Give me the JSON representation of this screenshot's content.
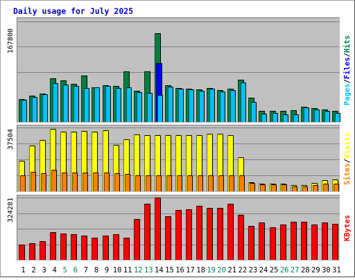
{
  "chart_data": [
    {
      "type": "bar",
      "title": "Daily usage for July 2025",
      "categories": [
        "1",
        "2",
        "3",
        "4",
        "5",
        "6",
        "7",
        "8",
        "9",
        "10",
        "11",
        "12",
        "13",
        "14",
        "15",
        "16",
        "17",
        "18",
        "19",
        "20",
        "21",
        "22",
        "23",
        "24",
        "25",
        "26",
        "27",
        "28",
        "29",
        "30",
        "31"
      ],
      "weekend_categories": [
        "5",
        "6",
        "12",
        "13",
        "19",
        "20",
        "26",
        "27"
      ],
      "ymax_label": "167800",
      "ylim": [
        0,
        167800
      ],
      "ylabel_parts": [
        "Pages",
        "Files",
        "Hits"
      ],
      "series": [
        {
          "name": "Hits",
          "color": "#008040",
          "values": [
            38000,
            44000,
            47000,
            73000,
            69000,
            64000,
            78000,
            58000,
            61000,
            60000,
            85000,
            52000,
            84000,
            148000,
            61000,
            57000,
            56000,
            54000,
            57000,
            53000,
            55000,
            71000,
            40000,
            18000,
            19000,
            19000,
            20000,
            25000,
            23000,
            21000,
            19000
          ]
        },
        {
          "name": "Files",
          "color": "#0000ff",
          "values": [
            null,
            null,
            null,
            null,
            null,
            null,
            null,
            null,
            null,
            null,
            null,
            null,
            null,
            98000,
            null,
            null,
            null,
            null,
            null,
            null,
            null,
            null,
            null,
            null,
            null,
            null,
            null,
            null,
            null,
            null,
            null
          ]
        },
        {
          "name": "Pages",
          "color": "#00c0ff",
          "values": [
            37000,
            42000,
            46000,
            65000,
            63000,
            60000,
            57000,
            58000,
            60000,
            57000,
            58000,
            50000,
            49000,
            45000,
            59000,
            56000,
            54000,
            52000,
            56000,
            51000,
            53000,
            66000,
            33000,
            14000,
            15000,
            13000,
            13000,
            24000,
            21000,
            19000,
            15000
          ]
        }
      ]
    },
    {
      "type": "bar",
      "categories": [
        "1",
        "2",
        "3",
        "4",
        "5",
        "6",
        "7",
        "8",
        "9",
        "10",
        "11",
        "12",
        "13",
        "14",
        "15",
        "16",
        "17",
        "18",
        "19",
        "20",
        "21",
        "22",
        "23",
        "24",
        "25",
        "26",
        "27",
        "28",
        "29",
        "30",
        "31"
      ],
      "ymax_label": "37504",
      "ylim": [
        0,
        37504
      ],
      "ylabel_parts": [
        "Sites",
        "Visits"
      ],
      "series": [
        {
          "name": "Visits",
          "color": "#ffff00",
          "values": [
            18000,
            27000,
            30000,
            36500,
            35000,
            35000,
            35500,
            35000,
            36000,
            27500,
            30500,
            33500,
            33000,
            33000,
            33000,
            33000,
            33000,
            33000,
            34000,
            34000,
            33000,
            20000,
            5500,
            4500,
            4500,
            4500,
            3500,
            3500,
            5000,
            6500,
            7000
          ]
        },
        {
          "name": "Sites",
          "color": "#ff8000",
          "values": [
            9500,
            11500,
            10500,
            12500,
            11000,
            11000,
            11000,
            11000,
            11000,
            10500,
            10000,
            9500,
            9500,
            9500,
            9500,
            9500,
            9500,
            9500,
            9500,
            9500,
            9500,
            9500,
            5000,
            4000,
            4000,
            4000,
            3000,
            3000,
            3500,
            4500,
            4500
          ]
        }
      ]
    },
    {
      "type": "bar",
      "categories": [
        "1",
        "2",
        "3",
        "4",
        "5",
        "6",
        "7",
        "8",
        "9",
        "10",
        "11",
        "12",
        "13",
        "14",
        "15",
        "16",
        "17",
        "18",
        "19",
        "20",
        "21",
        "22",
        "23",
        "24",
        "25",
        "26",
        "27",
        "28",
        "29",
        "30",
        "31"
      ],
      "ymax_label": "324281",
      "ylim": [
        0,
        324281
      ],
      "ylabel_parts": [
        "KBytes"
      ],
      "series": [
        {
          "name": "KBytes",
          "color": "#ff0000",
          "values": [
            80000,
            86000,
            96000,
            145000,
            138000,
            134000,
            126000,
            115000,
            125000,
            133000,
            115000,
            211000,
            291000,
            324281,
            226000,
            259000,
            263000,
            280000,
            271000,
            271000,
            293000,
            234000,
            178000,
            193000,
            169000,
            184000,
            197000,
            197000,
            184000,
            195000,
            186000
          ]
        }
      ]
    }
  ],
  "colors": {
    "plot_bg": "#c0c0c0",
    "gridline": "#808080",
    "title": "#0000c0",
    "weekday_label": "#000000",
    "weekend_label": "#008060",
    "separator": "#000000"
  }
}
